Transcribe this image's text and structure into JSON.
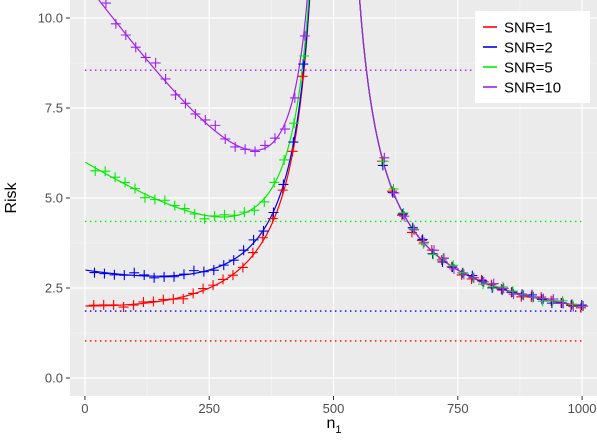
{
  "chart_data": {
    "type": "line",
    "xlabel": "n",
    "xlabel_sub": "1",
    "ylabel": "Risk",
    "xlim": [
      -30,
      1030
    ],
    "ylim": [
      -0.5,
      10.5
    ],
    "x_ticks": [
      0,
      250,
      500,
      750,
      1000
    ],
    "x_tick_labels": [
      "0",
      "250",
      "500",
      "750",
      "1000"
    ],
    "y_ticks": [
      0,
      2.5,
      5,
      7.5,
      10
    ],
    "y_tick_labels": [
      "0.0",
      "2.5",
      "5.0",
      "7.5",
      "10.0"
    ],
    "grid": true,
    "legend_position": "top-right",
    "markers": "plus",
    "pole_x": 500,
    "series": [
      {
        "name": "SNR=1",
        "snr": 1,
        "color": "#ff0000",
        "baseline": 1.03
      },
      {
        "name": "SNR=2",
        "snr": 2,
        "color": "#0000ee",
        "baseline": 1.86
      },
      {
        "name": "SNR=5",
        "snr": 5,
        "color": "#00ee00",
        "baseline": 4.35
      },
      {
        "name": "SNR=10",
        "snr": 10,
        "color": "#a020f0",
        "baseline": 8.55
      }
    ]
  }
}
